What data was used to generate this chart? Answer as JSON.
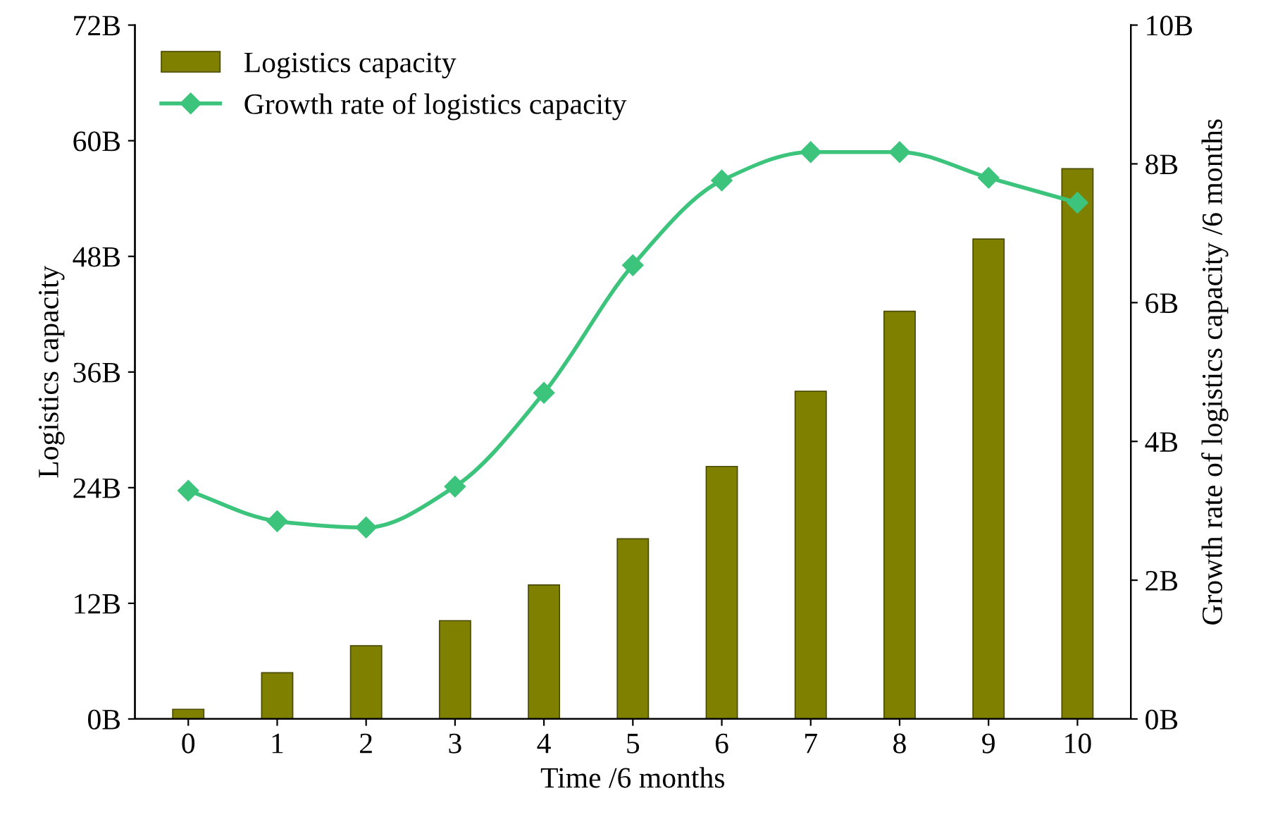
{
  "chart_data": {
    "type": "bar",
    "xlabel": "Time /6 months",
    "ylabel": "Logistics capacity",
    "y2label": "Growth rate of logistics capacity /6 months",
    "categories": [
      "0",
      "1",
      "2",
      "3",
      "4",
      "5",
      "6",
      "7",
      "8",
      "9",
      "10"
    ],
    "series": [
      {
        "name": "Logistics capacity",
        "color": "#808000",
        "values": [
          1.0,
          4.8,
          7.6,
          10.2,
          13.9,
          18.7,
          26.2,
          34.0,
          42.3,
          49.8,
          57.1
        ]
      },
      {
        "name": "Growth rate of logistics capacity",
        "type": "line",
        "axis": "y2",
        "color": "#3cc47c",
        "marker": "diamond",
        "values": [
          3.29,
          2.85,
          2.76,
          3.35,
          4.7,
          6.54,
          7.76,
          8.17,
          8.17,
          7.8,
          7.44
        ]
      }
    ],
    "ylim": [
      0,
      72
    ],
    "yticks": [
      {
        "value": 0,
        "label": "0B"
      },
      {
        "value": 12,
        "label": "12B"
      },
      {
        "value": 24,
        "label": "24B"
      },
      {
        "value": 36,
        "label": "36B"
      },
      {
        "value": 48,
        "label": "48B"
      },
      {
        "value": 60,
        "label": "60B"
      },
      {
        "value": 72,
        "label": "72B"
      }
    ],
    "y2lim": [
      0,
      10
    ],
    "y2ticks": [
      {
        "value": 0,
        "label": "0B"
      },
      {
        "value": 2,
        "label": "2B"
      },
      {
        "value": 4,
        "label": "4B"
      },
      {
        "value": 6,
        "label": "6B"
      },
      {
        "value": 8,
        "label": "8B"
      },
      {
        "value": 10,
        "label": "10B"
      }
    ],
    "legend": "top left",
    "grid": false
  }
}
